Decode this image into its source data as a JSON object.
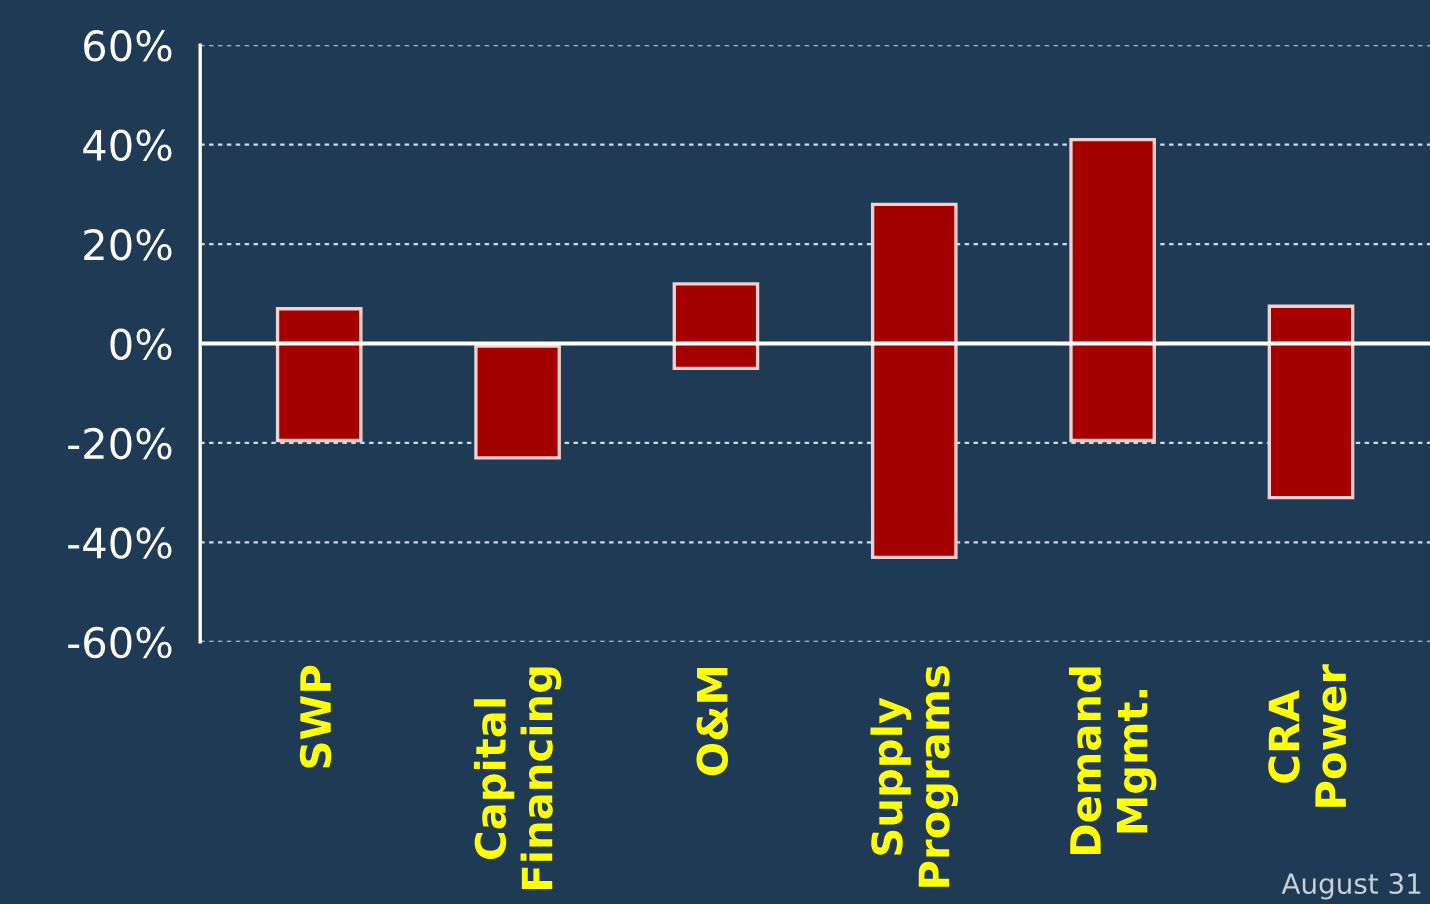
{
  "chart_data": {
    "type": "bar",
    "categories": [
      "SWP",
      "Capital\nFinancing",
      "O&M",
      "Supply\nPrograms",
      "Demand\nMgmt.",
      "CRA\nPower"
    ],
    "base": [
      -19.5,
      -23,
      -5,
      -43,
      -19.5,
      -31
    ],
    "values": [
      26.5,
      22.5,
      17,
      71,
      60.5,
      38.5
    ],
    "color": "#a50000",
    "ylim": [
      -60,
      60
    ],
    "yticks": [
      {
        "value": -60,
        "label": "-60%"
      },
      {
        "value": -40,
        "label": "-40%"
      },
      {
        "value": -20,
        "label": "-20%"
      },
      {
        "value": 0,
        "label": "0%"
      },
      {
        "value": 20,
        "label": "20%"
      },
      {
        "value": 40,
        "label": "40%"
      },
      {
        "value": 60,
        "label": "60%"
      }
    ],
    "grid": "y",
    "ref_lines": [
      {
        "axis": "y",
        "value": 0,
        "label": null,
        "color": "#ffffff"
      }
    ],
    "annotations": [
      "August 31"
    ]
  }
}
